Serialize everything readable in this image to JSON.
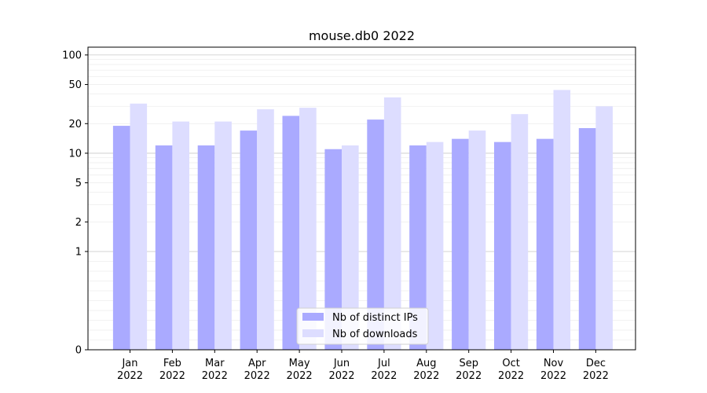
{
  "chart_data": {
    "type": "bar",
    "title": "mouse.db0 2022",
    "categories": [
      "Jan\n2022",
      "Feb\n2022",
      "Mar\n2022",
      "Apr\n2022",
      "May\n2022",
      "Jun\n2022",
      "Jul\n2022",
      "Aug\n2022",
      "Sep\n2022",
      "Oct\n2022",
      "Nov\n2022",
      "Dec\n2022"
    ],
    "series": [
      {
        "name": "Nb of distinct IPs",
        "color": "#aaaaff",
        "values": [
          19,
          12,
          12,
          17,
          24,
          11,
          22,
          12,
          14,
          13,
          14,
          18
        ]
      },
      {
        "name": "Nb of downloads",
        "color": "#ddddff",
        "values": [
          32,
          21,
          21,
          28,
          29,
          12,
          37,
          13,
          17,
          25,
          44,
          30
        ]
      }
    ],
    "yscale": "symlog",
    "yticks": [
      0,
      1,
      2,
      5,
      10,
      20,
      50,
      100
    ],
    "ylim": [
      0,
      120
    ],
    "grid": true,
    "legend_position": "lower center"
  }
}
